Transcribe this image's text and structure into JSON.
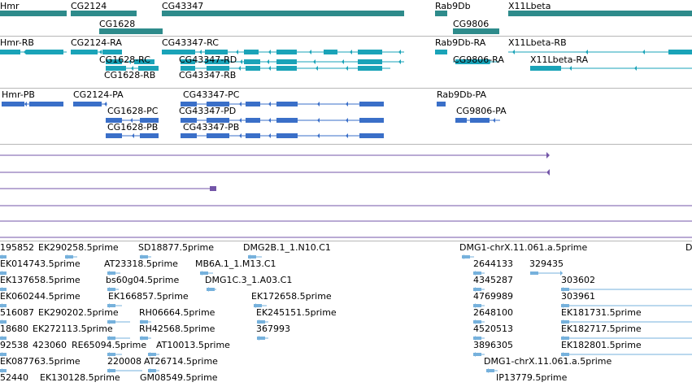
{
  "gene_track": {
    "labels": [
      "Hmr",
      "CG2124",
      "CG1628",
      "CG43347",
      "Rab9Db",
      "CG9806",
      "X11Lbeta"
    ]
  },
  "transcripts_ra": {
    "labels": [
      "Hmr-RB",
      "CG2124-RA",
      "CG1628-RC",
      "CG1628-RB",
      "CG43347-RC",
      "CG43347-RD",
      "CG43347-RB",
      "Rab9Db-RA",
      "CG9806-RA",
      "X11Lbeta-RB",
      "X11Lbeta-RA"
    ]
  },
  "transcripts_pa": {
    "labels": [
      "Hmr-PB",
      "CG2124-PA",
      "CG1628-PC",
      "CG1628-PB",
      "CG43347-PC",
      "CG43347-PD",
      "CG43347-PB",
      "Rab9Db-PA",
      "CG9806-PA"
    ]
  },
  "est_track": {
    "labels": [
      "195852",
      "EK290258.5prime",
      "SD18877.5prime",
      "DMG2B.1_1.N10.C1",
      "DMG1-chrX.11.061.a.5prime",
      "D",
      "EK014743.5prime",
      "AT23318.5prime",
      "MB6A.1_1.M13.C1",
      "2644133",
      "329435",
      "EK137658.5prime",
      "bs60g04.5prime",
      "DMG1C.3_1.A03.C1",
      "4345287",
      "303602",
      "EK060244.5prime",
      "EK166857.5prime",
      "EK172658.5prime",
      "4769989",
      "303961",
      "516087",
      "EK290202.5prime",
      "RH06664.5prime",
      "EK245151.5prime",
      "2648100",
      "EK181731.5prime",
      "18680",
      "EK272113.5prime",
      "RH42568.5prime",
      "367993",
      "4520513",
      "EK182717.5prime",
      "92538",
      "423060",
      "RE65094.5prime",
      "AT10013.5prime",
      "3896305",
      "EK182801.5prime",
      "EK087763.5prime",
      "220008",
      "AT26714.5prime",
      "DMG1-chrX.11.061.a.5prime",
      "52440",
      "EK130128.5prime",
      "GM08549.5prime",
      "IP13779.5prime"
    ]
  },
  "colors": {
    "gene": "#2e8b8b",
    "transcript_ra": "#1aa3b8",
    "protein_pa": "#3a6fc8",
    "alignment": "#7355a8",
    "est": "#76b1dc",
    "divider": "#b7b7b7"
  }
}
